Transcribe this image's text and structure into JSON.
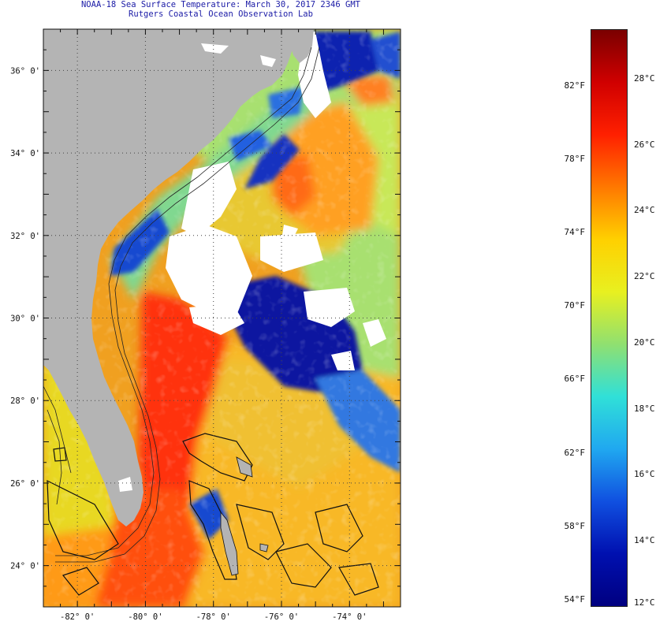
{
  "title": {
    "line1": "NOAA-18 Sea Surface Temperature:  March 30, 2017 2346 GMT",
    "line2": "Rutgers Coastal Ocean Observation Lab"
  },
  "map": {
    "lon_range": [
      -83.0,
      -72.5
    ],
    "lat_range": [
      23.0,
      37.0
    ],
    "lat_ticks": [
      {
        "value": 36,
        "label": "36° 0'"
      },
      {
        "value": 34,
        "label": "34° 0'"
      },
      {
        "value": 32,
        "label": "32° 0'"
      },
      {
        "value": 30,
        "label": "30° 0'"
      },
      {
        "value": 28,
        "label": "28° 0'"
      },
      {
        "value": 26,
        "label": "26° 0'"
      },
      {
        "value": 24,
        "label": "24° 0'"
      }
    ],
    "lon_ticks": [
      {
        "value": -82,
        "label": "-82° 0'"
      },
      {
        "value": -80,
        "label": "-80° 0'"
      },
      {
        "value": -78,
        "label": "-78° 0'"
      },
      {
        "value": -76,
        "label": "-76° 0'"
      },
      {
        "value": -74,
        "label": "-74° 0'"
      }
    ],
    "colors": {
      "land": "#b4b4b4",
      "cloud": "#ffffff",
      "gulf_stream": "#ff3010",
      "warm_ocean": "#ffa020",
      "mild_ocean": "#e8e030",
      "cool_ocean": "#a0e070",
      "cold_water": "#0a18a0"
    }
  },
  "colorbar": {
    "fahrenheit": [
      {
        "value": 82,
        "label": "82°F"
      },
      {
        "value": 78,
        "label": "78°F"
      },
      {
        "value": 74,
        "label": "74°F"
      },
      {
        "value": 70,
        "label": "70°F"
      },
      {
        "value": 66,
        "label": "66°F"
      },
      {
        "value": 62,
        "label": "62°F"
      },
      {
        "value": 58,
        "label": "58°F"
      },
      {
        "value": 54,
        "label": "54°F"
      }
    ],
    "celsius": [
      {
        "value": 28,
        "label": "28°C"
      },
      {
        "value": 26,
        "label": "26°C"
      },
      {
        "value": 24,
        "label": "24°C"
      },
      {
        "value": 22,
        "label": "22°C"
      },
      {
        "value": 20,
        "label": "20°C"
      },
      {
        "value": 18,
        "label": "18°C"
      },
      {
        "value": 16,
        "label": "16°C"
      },
      {
        "value": 14,
        "label": "14°C"
      },
      {
        "value": 12,
        "label": "12°C"
      }
    ],
    "range_c": [
      12,
      29.5
    ],
    "gradient": [
      "#7a0000",
      "#d00000",
      "#ff2000",
      "#ff7800",
      "#ffd000",
      "#e8f020",
      "#90e070",
      "#30e0d8",
      "#20a8f0",
      "#1050e0",
      "#0010b0",
      "#000080"
    ]
  }
}
